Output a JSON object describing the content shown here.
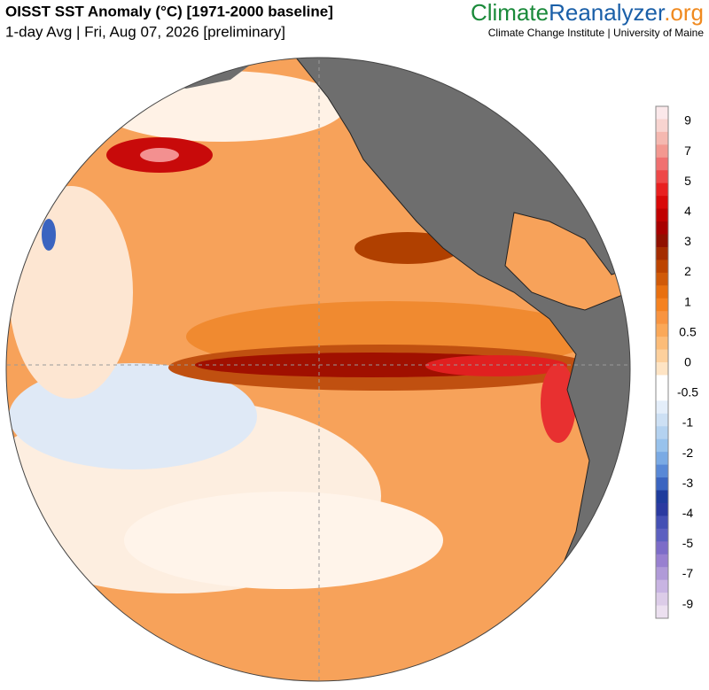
{
  "header": {
    "title": "OISST SST Anomaly (°C) [1971-2000 baseline]",
    "subtitle": "1-day Avg | Fri, Aug 07, 2026 [preliminary]"
  },
  "brand": {
    "part1": "Climate",
    "part2": "Reanalyzer",
    "part3": ".org",
    "tagline": "Climate Change Institute | University of Maine"
  },
  "colorbar": {
    "labels": [
      9,
      7,
      5,
      4,
      3,
      2,
      1,
      0.5,
      0,
      -0.5,
      -1,
      -2,
      -3,
      -4,
      -5,
      -7,
      -9
    ],
    "colors": [
      "#fbe8ea",
      "#f8d4d0",
      "#f5b8b0",
      "#f39890",
      "#f07070",
      "#ee4848",
      "#e82020",
      "#d80808",
      "#c00000",
      "#a80000",
      "#901000",
      "#a42c00",
      "#bc4400",
      "#d05a08",
      "#e87010",
      "#f58220",
      "#f89440",
      "#faa858",
      "#fcbc78",
      "#fdd09c",
      "#fee4c4",
      "#ffffff",
      "#ffffff",
      "#e4eefa",
      "#cde0f4",
      "#b4d2f0",
      "#98c2ec",
      "#7aaae4",
      "#5888d6",
      "#3a64c0",
      "#1e3c9c",
      "#2a3aa0",
      "#4450b4",
      "#5c60c0",
      "#7c6cc8",
      "#9880d0",
      "#b09ad8",
      "#c8b4e2",
      "#dccce8",
      "#ece0f0"
    ]
  }
}
